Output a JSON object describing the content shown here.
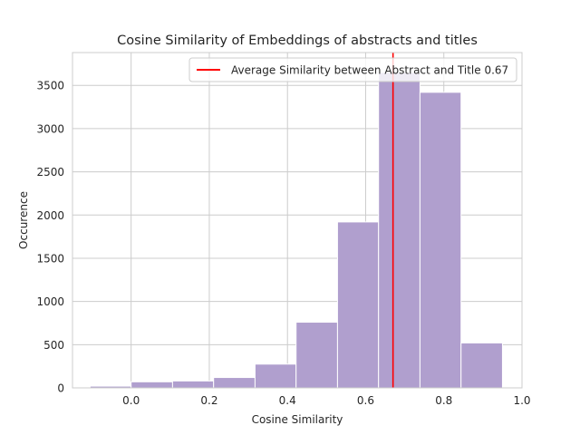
{
  "chart_data": {
    "type": "bar",
    "title": "Cosine Similarity of Embeddings of abstracts and titles",
    "xlabel": "Cosine Similarity",
    "ylabel": "Occurence",
    "xlim": [
      -0.15,
      1.0
    ],
    "ylim": [
      0,
      3880
    ],
    "xticks": [
      0.0,
      0.2,
      0.4,
      0.6,
      0.8,
      1.0
    ],
    "xtick_labels": [
      "0.0",
      "0.2",
      "0.4",
      "0.6",
      "0.8",
      "1.0"
    ],
    "yticks": [
      0,
      500,
      1000,
      1500,
      2000,
      2500,
      3000,
      3500
    ],
    "ytick_labels": [
      "0",
      "500",
      "1000",
      "1500",
      "2000",
      "2500",
      "3000",
      "3500"
    ],
    "grid": true,
    "bins": [
      {
        "x0": -0.105,
        "x1": -0.0,
        "value": 20
      },
      {
        "x0": -0.0,
        "x1": 0.106,
        "value": 70
      },
      {
        "x0": 0.106,
        "x1": 0.211,
        "value": 80
      },
      {
        "x0": 0.211,
        "x1": 0.317,
        "value": 120
      },
      {
        "x0": 0.317,
        "x1": 0.422,
        "value": 275
      },
      {
        "x0": 0.422,
        "x1": 0.528,
        "value": 760
      },
      {
        "x0": 0.528,
        "x1": 0.633,
        "value": 1920
      },
      {
        "x0": 0.633,
        "x1": 0.739,
        "value": 3650
      },
      {
        "x0": 0.739,
        "x1": 0.844,
        "value": 3420
      },
      {
        "x0": 0.844,
        "x1": 0.95,
        "value": 520
      }
    ],
    "bar_color": "#b09fce",
    "vline": {
      "x": 0.67,
      "color": "#ff0000",
      "label": "Average Similarity between Abstract and Title 0.67"
    },
    "legend_position": "top-right"
  }
}
